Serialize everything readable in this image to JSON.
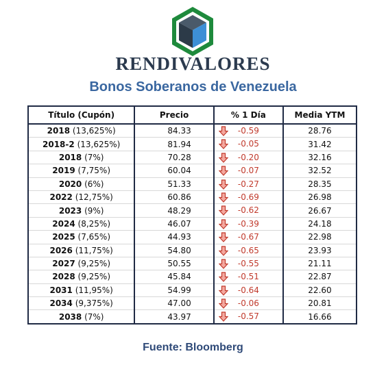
{
  "brand": "RENDIVALORES",
  "subtitle": "Bonos Soberanos de Venezuela",
  "colors": {
    "title_blue": "#3a67a0",
    "brand_dark": "#2b3a4e",
    "negative_red": "#c0392b",
    "logo_green": "#1e8a3c"
  },
  "table": {
    "headers": [
      "Título (Cupón)",
      "Precio",
      "% 1 Día",
      "Media YTM"
    ],
    "rows": [
      {
        "year": "2018",
        "coupon": "(13,625%)",
        "price": "84.33",
        "change": "-0.59",
        "ytm": "28.76",
        "icon": "arrow-down-icon"
      },
      {
        "year": "2018-2",
        "coupon": "(13,625%)",
        "price": "81.94",
        "change": "-0.05",
        "ytm": "31.42",
        "icon": "arrow-down-icon"
      },
      {
        "year": "2018",
        "coupon": "(7%)",
        "price": "70.28",
        "change": "-0.20",
        "ytm": "32.16",
        "icon": "arrow-down-icon"
      },
      {
        "year": "2019",
        "coupon": "(7,75%)",
        "price": "60.04",
        "change": "-0.07",
        "ytm": "32.52",
        "icon": "arrow-down-icon"
      },
      {
        "year": "2020",
        "coupon": "(6%)",
        "price": "51.33",
        "change": "-0.27",
        "ytm": "28.35",
        "icon": "arrow-down-icon"
      },
      {
        "year": "2022",
        "coupon": "(12,75%)",
        "price": "60.86",
        "change": "-0.69",
        "ytm": "26.98",
        "icon": "arrow-down-icon"
      },
      {
        "year": "2023",
        "coupon": "(9%)",
        "price": "48.29",
        "change": "-0.62",
        "ytm": "26.67",
        "icon": "arrow-down-icon"
      },
      {
        "year": "2024",
        "coupon": "(8,25%)",
        "price": "46.07",
        "change": "-0.39",
        "ytm": "24.18",
        "icon": "arrow-down-icon"
      },
      {
        "year": "2025",
        "coupon": "(7,65%)",
        "price": "44.93",
        "change": "-0.67",
        "ytm": "22.98",
        "icon": "arrow-down-icon"
      },
      {
        "year": "2026",
        "coupon": "(11,75%)",
        "price": "54.80",
        "change": "-0.65",
        "ytm": "23.93",
        "icon": "arrow-down-icon"
      },
      {
        "year": "2027",
        "coupon": "(9,25%)",
        "price": "50.55",
        "change": "-0.55",
        "ytm": "21.11",
        "icon": "arrow-down-icon"
      },
      {
        "year": "2028",
        "coupon": "(9,25%)",
        "price": "45.84",
        "change": "-0.51",
        "ytm": "22.87",
        "icon": "arrow-down-icon"
      },
      {
        "year": "2031",
        "coupon": "(11,95%)",
        "price": "54.99",
        "change": "-0.64",
        "ytm": "22.60",
        "icon": "arrow-down-icon"
      },
      {
        "year": "2034",
        "coupon": "(9,375%)",
        "price": "47.00",
        "change": "-0.06",
        "ytm": "20.81",
        "icon": "arrow-down-icon"
      },
      {
        "year": "2038",
        "coupon": "(7%)",
        "price": "43.97",
        "change": "-0.57",
        "ytm": "16.66",
        "icon": "arrow-down-icon"
      }
    ]
  },
  "source": "Fuente: Bloomberg"
}
